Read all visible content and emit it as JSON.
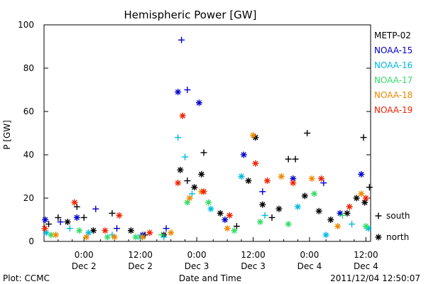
{
  "chart_data": {
    "type": "scatter",
    "title": "Hemispheric Power [GW]",
    "ylabel": "P [GW]",
    "xlabel": "Date and Time",
    "ylim": [
      0,
      100
    ],
    "xlim": [
      "2011-12-01T15:30",
      "2011-12-04T13:00"
    ],
    "yticks": [
      0,
      20,
      40,
      60,
      80,
      100
    ],
    "xticks": [
      {
        "time": "0:00",
        "date": "Dec 2",
        "at": "2011-12-02T00:00"
      },
      {
        "time": "12:00",
        "date": "Dec 2",
        "at": "2011-12-02T12:00"
      },
      {
        "time": "0:00",
        "date": "Dec 3",
        "at": "2011-12-03T00:00"
      },
      {
        "time": "12:00",
        "date": "Dec 3",
        "at": "2011-12-03T12:00"
      },
      {
        "time": "0:00",
        "date": "Dec 4",
        "at": "2011-12-04T00:00"
      },
      {
        "time": "12:00",
        "date": "Dec 4",
        "at": "2011-12-04T12:00"
      }
    ],
    "legend_placement": "right",
    "marker_key": [
      {
        "symbol": "+",
        "label": "south",
        "marker": "plus"
      },
      {
        "symbol": "*",
        "label": "north",
        "marker": "star"
      }
    ],
    "series": [
      {
        "name": "METP-02",
        "color": "#000000",
        "points": [
          {
            "t": "2011-12-01T16:30",
            "v": 8,
            "m": "plus"
          },
          {
            "t": "2011-12-01T18:30",
            "v": 11,
            "m": "plus"
          },
          {
            "t": "2011-12-01T20:30",
            "v": 9,
            "m": "star"
          },
          {
            "t": "2011-12-01T22:30",
            "v": 16,
            "m": "plus"
          },
          {
            "t": "2011-12-02T00:00",
            "v": 11,
            "m": "plus"
          },
          {
            "t": "2011-12-02T02:00",
            "v": 5,
            "m": "star"
          },
          {
            "t": "2011-12-02T06:00",
            "v": 13,
            "m": "plus"
          },
          {
            "t": "2011-12-02T10:00",
            "v": 5,
            "m": "star"
          },
          {
            "t": "2011-12-02T13:00",
            "v": 3,
            "m": "plus"
          },
          {
            "t": "2011-12-02T17:00",
            "v": 3,
            "m": "star"
          },
          {
            "t": "2011-12-02T20:30",
            "v": 33,
            "m": "star"
          },
          {
            "t": "2011-12-02T22:00",
            "v": 28,
            "m": "plus"
          },
          {
            "t": "2011-12-02T23:30",
            "v": 25,
            "m": "star"
          },
          {
            "t": "2011-12-03T01:00",
            "v": 31,
            "m": "star"
          },
          {
            "t": "2011-12-03T01:30",
            "v": 41,
            "m": "plus"
          },
          {
            "t": "2011-12-03T05:00",
            "v": 13,
            "m": "star"
          },
          {
            "t": "2011-12-03T08:30",
            "v": 7,
            "m": "plus"
          },
          {
            "t": "2011-12-03T11:00",
            "v": 28,
            "m": "star"
          },
          {
            "t": "2011-12-03T12:30",
            "v": 48,
            "m": "star"
          },
          {
            "t": "2011-12-03T14:00",
            "v": 17,
            "m": "star"
          },
          {
            "t": "2011-12-03T16:00",
            "v": 11,
            "m": "plus"
          },
          {
            "t": "2011-12-03T17:30",
            "v": 15,
            "m": "star"
          },
          {
            "t": "2011-12-03T19:30",
            "v": 38,
            "m": "plus"
          },
          {
            "t": "2011-12-03T21:00",
            "v": 38,
            "m": "plus"
          },
          {
            "t": "2011-12-03T23:00",
            "v": 21,
            "m": "star"
          },
          {
            "t": "2011-12-03T23:30",
            "v": 50,
            "m": "plus"
          },
          {
            "t": "2011-12-04T02:00",
            "v": 14,
            "m": "star"
          },
          {
            "t": "2011-12-04T04:30",
            "v": 10,
            "m": "star"
          },
          {
            "t": "2011-12-04T08:00",
            "v": 13,
            "m": "star"
          },
          {
            "t": "2011-12-04T10:00",
            "v": 20,
            "m": "star"
          },
          {
            "t": "2011-12-04T11:30",
            "v": 48,
            "m": "plus"
          },
          {
            "t": "2011-12-04T11:45",
            "v": 18,
            "m": "star"
          },
          {
            "t": "2011-12-04T12:45",
            "v": 25,
            "m": "plus"
          }
        ]
      },
      {
        "name": "NOAA-15",
        "color": "#0000cc",
        "points": [
          {
            "t": "2011-12-01T15:45",
            "v": 10,
            "m": "star"
          },
          {
            "t": "2011-12-01T19:00",
            "v": 9,
            "m": "plus"
          },
          {
            "t": "2011-12-01T22:30",
            "v": 11,
            "m": "star"
          },
          {
            "t": "2011-12-02T02:30",
            "v": 15,
            "m": "plus"
          },
          {
            "t": "2011-12-02T07:00",
            "v": 6,
            "m": "plus"
          },
          {
            "t": "2011-12-02T12:30",
            "v": 3,
            "m": "star"
          },
          {
            "t": "2011-12-02T17:30",
            "v": 6,
            "m": "plus"
          },
          {
            "t": "2011-12-02T20:00",
            "v": 69,
            "m": "star"
          },
          {
            "t": "2011-12-02T20:45",
            "v": 93,
            "m": "plus"
          },
          {
            "t": "2011-12-02T22:00",
            "v": 70,
            "m": "plus"
          },
          {
            "t": "2011-12-03T00:30",
            "v": 64,
            "m": "star"
          },
          {
            "t": "2011-12-03T06:00",
            "v": 10,
            "m": "star"
          },
          {
            "t": "2011-12-03T10:00",
            "v": 40,
            "m": "star"
          },
          {
            "t": "2011-12-03T14:00",
            "v": 23,
            "m": "plus"
          },
          {
            "t": "2011-12-03T20:30",
            "v": 29,
            "m": "star"
          },
          {
            "t": "2011-12-04T03:00",
            "v": 27,
            "m": "plus"
          },
          {
            "t": "2011-12-04T06:30",
            "v": 13,
            "m": "star"
          },
          {
            "t": "2011-12-04T11:00",
            "v": 31,
            "m": "star"
          }
        ]
      },
      {
        "name": "NOAA-16",
        "color": "#00bbdd",
        "points": [
          {
            "t": "2011-12-01T16:00",
            "v": 4,
            "m": "star"
          },
          {
            "t": "2011-12-01T21:00",
            "v": 6,
            "m": "plus"
          },
          {
            "t": "2011-12-02T01:00",
            "v": 4,
            "m": "star"
          },
          {
            "t": "2011-12-02T06:00",
            "v": 3,
            "m": "plus"
          },
          {
            "t": "2011-12-02T12:00",
            "v": 2,
            "m": "star"
          },
          {
            "t": "2011-12-02T17:00",
            "v": 2,
            "m": "plus"
          },
          {
            "t": "2011-12-02T20:00",
            "v": 48,
            "m": "plus"
          },
          {
            "t": "2011-12-02T21:30",
            "v": 39,
            "m": "plus"
          },
          {
            "t": "2011-12-02T23:00",
            "v": 22,
            "m": "plus"
          },
          {
            "t": "2011-12-03T03:00",
            "v": 15,
            "m": "star"
          },
          {
            "t": "2011-12-03T09:30",
            "v": 30,
            "m": "star"
          },
          {
            "t": "2011-12-03T14:30",
            "v": 12,
            "m": "plus"
          },
          {
            "t": "2011-12-03T21:30",
            "v": 16,
            "m": "star"
          },
          {
            "t": "2011-12-04T03:30",
            "v": 3,
            "m": "star"
          },
          {
            "t": "2011-12-04T09:00",
            "v": 8,
            "m": "plus"
          },
          {
            "t": "2011-12-04T12:30",
            "v": 6,
            "m": "star"
          }
        ]
      },
      {
        "name": "NOAA-17",
        "color": "#33dd66",
        "points": [
          {
            "t": "2011-12-01T17:00",
            "v": 3,
            "m": "star"
          },
          {
            "t": "2011-12-01T23:00",
            "v": 5,
            "m": "star"
          },
          {
            "t": "2011-12-02T05:00",
            "v": 2,
            "m": "star"
          },
          {
            "t": "2011-12-02T11:00",
            "v": 2,
            "m": "star"
          },
          {
            "t": "2011-12-02T16:30",
            "v": 3,
            "m": "plus"
          },
          {
            "t": "2011-12-02T22:00",
            "v": 18,
            "m": "star"
          },
          {
            "t": "2011-12-03T02:30",
            "v": 18,
            "m": "star"
          },
          {
            "t": "2011-12-03T08:00",
            "v": 5,
            "m": "star"
          },
          {
            "t": "2011-12-03T13:30",
            "v": 9,
            "m": "star"
          },
          {
            "t": "2011-12-03T19:30",
            "v": 8,
            "m": "star"
          },
          {
            "t": "2011-12-04T01:00",
            "v": 22,
            "m": "star"
          },
          {
            "t": "2011-12-04T07:00",
            "v": 12,
            "m": "plus"
          },
          {
            "t": "2011-12-04T12:00",
            "v": 7,
            "m": "star"
          }
        ]
      },
      {
        "name": "NOAA-18",
        "color": "#ee8800",
        "points": [
          {
            "t": "2011-12-01T18:00",
            "v": 3,
            "m": "star"
          },
          {
            "t": "2011-12-02T00:30",
            "v": 2,
            "m": "star"
          },
          {
            "t": "2011-12-02T06:30",
            "v": 2,
            "m": "star"
          },
          {
            "t": "2011-12-02T12:30",
            "v": 2,
            "m": "star"
          },
          {
            "t": "2011-12-02T18:30",
            "v": 4,
            "m": "star"
          },
          {
            "t": "2011-12-02T22:30",
            "v": 20,
            "m": "star"
          },
          {
            "t": "2011-12-03T01:00",
            "v": 23,
            "m": "star"
          },
          {
            "t": "2011-12-03T06:30",
            "v": 6,
            "m": "star"
          },
          {
            "t": "2011-12-03T12:00",
            "v": 49,
            "m": "star"
          },
          {
            "t": "2011-12-03T18:00",
            "v": 30,
            "m": "star"
          },
          {
            "t": "2011-12-04T00:30",
            "v": 29,
            "m": "star"
          },
          {
            "t": "2011-12-04T06:00",
            "v": 7,
            "m": "star"
          },
          {
            "t": "2011-12-04T11:00",
            "v": 22,
            "m": "star"
          }
        ]
      },
      {
        "name": "NOAA-19",
        "color": "#ee2200",
        "points": [
          {
            "t": "2011-12-01T15:40",
            "v": 6,
            "m": "star"
          },
          {
            "t": "2011-12-01T22:00",
            "v": 18,
            "m": "star"
          },
          {
            "t": "2011-12-02T04:30",
            "v": 5,
            "m": "star"
          },
          {
            "t": "2011-12-02T07:30",
            "v": 12,
            "m": "star"
          },
          {
            "t": "2011-12-02T14:00",
            "v": 4,
            "m": "star"
          },
          {
            "t": "2011-12-02T20:00",
            "v": 27,
            "m": "star"
          },
          {
            "t": "2011-12-02T21:00",
            "v": 58,
            "m": "star"
          },
          {
            "t": "2011-12-03T01:30",
            "v": 23,
            "m": "star"
          },
          {
            "t": "2011-12-03T07:00",
            "v": 12,
            "m": "star"
          },
          {
            "t": "2011-12-03T12:30",
            "v": 36,
            "m": "star"
          },
          {
            "t": "2011-12-03T15:00",
            "v": 28,
            "m": "star"
          },
          {
            "t": "2011-12-03T20:30",
            "v": 27,
            "m": "star"
          },
          {
            "t": "2011-12-04T02:30",
            "v": 29,
            "m": "star"
          },
          {
            "t": "2011-12-04T08:30",
            "v": 16,
            "m": "star"
          },
          {
            "t": "2011-12-04T12:00",
            "v": 20,
            "m": "star"
          }
        ]
      }
    ]
  },
  "footer": {
    "plot_label": "Plot: CCMC",
    "timestamp": "2011/12/04 12:50:07"
  }
}
